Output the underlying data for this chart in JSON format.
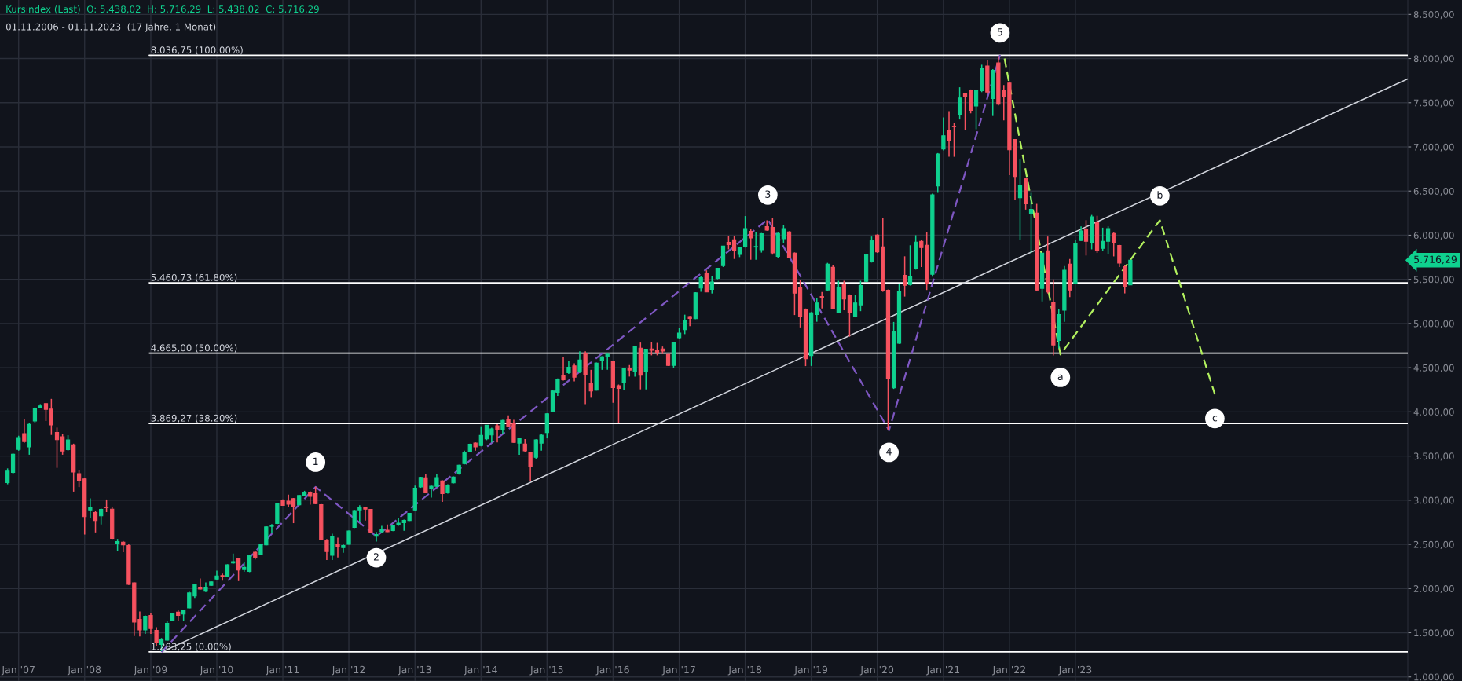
{
  "chart_data": {
    "type": "candlestick",
    "title": "Kursindex (Last)  O: 5.438,02  H: 5.716,29  L: 5.438,02  C: 5.716,29",
    "subtitle": "01.11.2006 - 01.11.2023  (17 Jahre, 1 Monat)",
    "x": [
      "2006-11",
      "2006-12",
      "2007-01",
      "2007-02",
      "2007-03",
      "2007-04",
      "2007-05",
      "2007-06",
      "2007-07",
      "2007-08",
      "2007-09",
      "2007-10",
      "2007-11",
      "2007-12",
      "2008-01",
      "2008-02",
      "2008-03",
      "2008-04",
      "2008-05",
      "2008-06",
      "2008-07",
      "2008-08",
      "2008-09",
      "2008-10",
      "2008-11",
      "2008-12",
      "2009-01",
      "2009-02",
      "2009-03",
      "2009-04",
      "2009-05",
      "2009-06",
      "2009-07",
      "2009-08",
      "2009-09",
      "2009-10",
      "2009-11",
      "2009-12",
      "2010-01",
      "2010-02",
      "2010-03",
      "2010-04",
      "2010-05",
      "2010-06",
      "2010-07",
      "2010-08",
      "2010-09",
      "2010-10",
      "2010-11",
      "2010-12",
      "2011-01",
      "2011-02",
      "2011-03",
      "2011-04",
      "2011-05",
      "2011-06",
      "2011-07",
      "2011-08",
      "2011-09",
      "2011-10",
      "2011-11",
      "2011-12",
      "2012-01",
      "2012-02",
      "2012-03",
      "2012-04",
      "2012-05",
      "2012-06",
      "2012-07",
      "2012-08",
      "2012-09",
      "2012-10",
      "2012-11",
      "2012-12",
      "2013-01",
      "2013-02",
      "2013-03",
      "2013-04",
      "2013-05",
      "2013-06",
      "2013-07",
      "2013-08",
      "2013-09",
      "2013-10",
      "2013-11",
      "2013-12",
      "2014-01",
      "2014-02",
      "2014-03",
      "2014-04",
      "2014-05",
      "2014-06",
      "2014-07",
      "2014-08",
      "2014-09",
      "2014-10",
      "2014-11",
      "2014-12",
      "2015-01",
      "2015-02",
      "2015-03",
      "2015-04",
      "2015-05",
      "2015-06",
      "2015-07",
      "2015-08",
      "2015-09",
      "2015-10",
      "2015-11",
      "2015-12",
      "2016-01",
      "2016-02",
      "2016-03",
      "2016-04",
      "2016-05",
      "2016-06",
      "2016-07",
      "2016-08",
      "2016-09",
      "2016-10",
      "2016-11",
      "2016-12",
      "2017-01",
      "2017-02",
      "2017-03",
      "2017-04",
      "2017-05",
      "2017-06",
      "2017-07",
      "2017-08",
      "2017-09",
      "2017-10",
      "2017-11",
      "2017-12",
      "2018-01",
      "2018-02",
      "2018-03",
      "2018-04",
      "2018-05",
      "2018-06",
      "2018-07",
      "2018-08",
      "2018-09",
      "2018-10",
      "2018-11",
      "2018-12",
      "2019-01",
      "2019-02",
      "2019-03",
      "2019-04",
      "2019-05",
      "2019-06",
      "2019-07",
      "2019-08",
      "2019-09",
      "2019-10",
      "2019-11",
      "2019-12",
      "2020-01",
      "2020-02",
      "2020-03",
      "2020-04",
      "2020-05",
      "2020-06",
      "2020-07",
      "2020-08",
      "2020-09",
      "2020-10",
      "2020-11",
      "2020-12",
      "2021-01",
      "2021-02",
      "2021-03",
      "2021-04",
      "2021-05",
      "2021-06",
      "2021-07",
      "2021-08",
      "2021-09",
      "2021-10",
      "2021-11",
      "2021-12",
      "2022-01",
      "2022-02",
      "2022-03",
      "2022-04",
      "2022-05",
      "2022-06",
      "2022-07",
      "2022-08",
      "2022-09",
      "2022-10",
      "2022-11",
      "2022-12",
      "2023-01",
      "2023-02",
      "2023-03",
      "2023-04",
      "2023-05",
      "2023-06",
      "2023-07",
      "2023-08",
      "2023-09",
      "2023-10",
      "2023-11"
    ],
    "ohlc": [
      [
        3200,
        3360,
        3180,
        3330
      ],
      [
        3315,
        3530,
        3300,
        3520
      ],
      [
        3575,
        3730,
        3560,
        3710
      ],
      [
        3753,
        3915,
        3650,
        3664
      ],
      [
        3604,
        3870,
        3515,
        3858
      ],
      [
        3897,
        4050,
        3880,
        4043
      ],
      [
        4052,
        4088,
        4040,
        4067
      ],
      [
        4093,
        4100,
        3897,
        4028
      ],
      [
        4031,
        4147,
        3739,
        3852
      ],
      [
        3768,
        3822,
        3366,
        3685
      ],
      [
        3718,
        3753,
        3515,
        3557
      ],
      [
        3572,
        3736,
        3560,
        3682
      ],
      [
        3628,
        3640,
        3097,
        3318
      ],
      [
        3300,
        3342,
        3148,
        3217
      ],
      [
        3241,
        3250,
        2611,
        2814
      ],
      [
        2889,
        3020,
        2799,
        2913
      ],
      [
        2859,
        2874,
        2635,
        2769
      ],
      [
        2823,
        2905,
        2725,
        2895
      ],
      [
        2922,
        3008,
        2865,
        2916
      ],
      [
        2898,
        2922,
        2560,
        2567
      ],
      [
        2513,
        2561,
        2426,
        2531
      ],
      [
        2525,
        2537,
        2411,
        2495
      ],
      [
        2486,
        2507,
        2040,
        2048
      ],
      [
        2063,
        2070,
        1463,
        1621
      ],
      [
        1651,
        1741,
        1457,
        1532
      ],
      [
        1532,
        1695,
        1487,
        1687
      ],
      [
        1696,
        1726,
        1487,
        1547
      ],
      [
        1526,
        1562,
        1344,
        1392
      ],
      [
        1368,
        1440,
        1290,
        1428
      ],
      [
        1416,
        1630,
        1410,
        1606
      ],
      [
        1637,
        1725,
        1630,
        1717
      ],
      [
        1732,
        1761,
        1637,
        1696
      ],
      [
        1711,
        1760,
        1630,
        1756
      ],
      [
        1780,
        1964,
        1775,
        1950
      ],
      [
        1917,
        2050,
        1893,
        2045
      ],
      [
        2015,
        2114,
        1990,
        1994
      ],
      [
        1970,
        2070,
        1960,
        2015
      ],
      [
        2036,
        2080,
        2030,
        2075
      ],
      [
        2107,
        2203,
        2100,
        2143
      ],
      [
        2146,
        2170,
        2090,
        2131
      ],
      [
        2137,
        2275,
        2130,
        2268
      ],
      [
        2289,
        2396,
        2280,
        2304
      ],
      [
        2337,
        2345,
        2084,
        2209
      ],
      [
        2215,
        2300,
        2190,
        2239
      ],
      [
        2194,
        2380,
        2185,
        2373
      ],
      [
        2412,
        2420,
        2330,
        2352
      ],
      [
        2388,
        2505,
        2380,
        2501
      ],
      [
        2495,
        2705,
        2490,
        2698
      ],
      [
        2704,
        2730,
        2630,
        2710
      ],
      [
        2737,
        2960,
        2730,
        2957
      ],
      [
        3002,
        3010,
        2935,
        2942
      ],
      [
        2990,
        3062,
        2919,
        2954
      ],
      [
        3017,
        3025,
        2740,
        2933
      ],
      [
        2948,
        3060,
        2940,
        3053
      ],
      [
        3056,
        3106,
        3050,
        3083
      ],
      [
        3092,
        3100,
        2950,
        3044
      ],
      [
        3074,
        3151,
        2955,
        2960
      ],
      [
        2948,
        2955,
        2545,
        2552
      ],
      [
        2546,
        2560,
        2322,
        2418
      ],
      [
        2376,
        2620,
        2322,
        2591
      ],
      [
        2501,
        2576,
        2352,
        2477
      ],
      [
        2462,
        2510,
        2405,
        2486
      ],
      [
        2501,
        2655,
        2495,
        2650
      ],
      [
        2692,
        2890,
        2685,
        2883
      ],
      [
        2889,
        2942,
        2750,
        2919
      ],
      [
        2919,
        2925,
        2770,
        2898
      ],
      [
        2895,
        2900,
        2630,
        2635
      ],
      [
        2591,
        2640,
        2531,
        2611
      ],
      [
        2644,
        2710,
        2630,
        2665
      ],
      [
        2659,
        2725,
        2640,
        2644
      ],
      [
        2656,
        2720,
        2650,
        2716
      ],
      [
        2719,
        2800,
        2710,
        2740
      ],
      [
        2746,
        2780,
        2653,
        2770
      ],
      [
        2770,
        2855,
        2765,
        2850
      ],
      [
        2889,
        3165,
        2880,
        3136
      ],
      [
        3151,
        3265,
        3140,
        3259
      ],
      [
        3253,
        3291,
        3080,
        3083
      ],
      [
        3127,
        3165,
        3030,
        3157
      ],
      [
        3157,
        3291,
        3150,
        3256
      ],
      [
        3217,
        3225,
        2980,
        3074
      ],
      [
        3083,
        3180,
        3075,
        3172
      ],
      [
        3196,
        3270,
        3190,
        3262
      ],
      [
        3300,
        3400,
        3290,
        3396
      ],
      [
        3414,
        3560,
        3405,
        3539
      ],
      [
        3551,
        3640,
        3545,
        3634
      ],
      [
        3646,
        3655,
        3560,
        3604
      ],
      [
        3619,
        3837,
        3610,
        3733
      ],
      [
        3694,
        3850,
        3680,
        3849
      ],
      [
        3739,
        3820,
        3655,
        3807
      ],
      [
        3843,
        3860,
        3655,
        3795
      ],
      [
        3799,
        3910,
        3745,
        3903
      ],
      [
        3915,
        3960,
        3835,
        3840
      ],
      [
        3864,
        3910,
        3650,
        3655
      ],
      [
        3646,
        3700,
        3515,
        3696
      ],
      [
        3637,
        3691,
        3550,
        3560
      ],
      [
        3542,
        3550,
        3213,
        3381
      ],
      [
        3485,
        3690,
        3470,
        3682
      ],
      [
        3646,
        3745,
        3560,
        3736
      ],
      [
        3766,
        3985,
        3700,
        3978
      ],
      [
        4005,
        4245,
        3995,
        4237
      ],
      [
        4222,
        4380,
        4180,
        4372
      ],
      [
        4408,
        4616,
        4355,
        4363
      ],
      [
        4443,
        4581,
        4430,
        4506
      ],
      [
        4521,
        4551,
        4345,
        4393
      ],
      [
        4461,
        4685,
        4440,
        4587
      ],
      [
        4658,
        4685,
        4088,
        4425
      ],
      [
        4327,
        4476,
        4160,
        4237
      ],
      [
        4246,
        4560,
        4240,
        4551
      ],
      [
        4581,
        4630,
        4476,
        4622
      ],
      [
        4628,
        4660,
        4476,
        4652
      ],
      [
        4569,
        4575,
        4103,
        4276
      ],
      [
        4297,
        4310,
        3873,
        4267
      ],
      [
        4336,
        4500,
        4250,
        4494
      ],
      [
        4494,
        4530,
        4400,
        4473
      ],
      [
        4455,
        4750,
        4400,
        4745
      ],
      [
        4721,
        4785,
        4255,
        4416
      ],
      [
        4461,
        4715,
        4255,
        4709
      ],
      [
        4712,
        4790,
        4640,
        4697
      ],
      [
        4694,
        4781,
        4640,
        4670
      ],
      [
        4712,
        4740,
        4655,
        4688
      ],
      [
        4649,
        4655,
        4520,
        4527
      ],
      [
        4527,
        4790,
        4500,
        4781
      ],
      [
        4840,
        4955,
        4830,
        4891
      ],
      [
        4930,
        5100,
        4880,
        5034
      ],
      [
        5079,
        5085,
        4970,
        5058
      ],
      [
        5055,
        5355,
        5050,
        5348
      ],
      [
        5402,
        5536,
        5360,
        5518
      ],
      [
        5572,
        5602,
        5355,
        5357
      ],
      [
        5387,
        5536,
        5340,
        5470
      ],
      [
        5512,
        5630,
        5500,
        5625
      ],
      [
        5655,
        5880,
        5640,
        5876
      ],
      [
        5918,
        5993,
        5840,
        5894
      ],
      [
        5949,
        5990,
        5731,
        5830
      ],
      [
        5782,
        5865,
        5752,
        5856
      ],
      [
        5871,
        6217,
        5860,
        6074
      ],
      [
        6044,
        6074,
        5722,
        5970
      ],
      [
        5866,
        6038,
        5722,
        5872
      ],
      [
        5835,
        6025,
        5803,
        6017
      ],
      [
        6098,
        6169,
        6050,
        6059
      ],
      [
        6089,
        6199,
        5780,
        5800
      ],
      [
        5761,
        6030,
        5740,
        6020
      ],
      [
        5961,
        6119,
        5910,
        6074
      ],
      [
        6038,
        6045,
        5740,
        5746
      ],
      [
        5797,
        5805,
        5096,
        5344
      ],
      [
        5412,
        5493,
        4956,
        5084
      ],
      [
        5162,
        5170,
        4518,
        4602
      ],
      [
        4638,
        5130,
        4520,
        5120
      ],
      [
        5102,
        5284,
        5020,
        5233
      ],
      [
        5305,
        5358,
        5170,
        5290
      ],
      [
        5380,
        5687,
        5370,
        5672
      ],
      [
        5636,
        5663,
        5160,
        5165
      ],
      [
        5129,
        5484,
        5120,
        5403
      ],
      [
        5448,
        5484,
        5150,
        5278
      ],
      [
        5323,
        5330,
        4852,
        5129
      ],
      [
        5076,
        5320,
        5070,
        5233
      ],
      [
        5210,
        5484,
        5140,
        5430
      ],
      [
        5478,
        5785,
        5470,
        5779
      ],
      [
        5701,
        5985,
        5690,
        5940
      ],
      [
        6002,
        6010,
        5800,
        5812
      ],
      [
        5868,
        6199,
        5360,
        5371
      ],
      [
        5377,
        5385,
        3794,
        4381
      ],
      [
        4272,
        5018,
        4260,
        4912
      ],
      [
        4778,
        5448,
        4770,
        5359
      ],
      [
        5546,
        5761,
        5305,
        5433
      ],
      [
        5442,
        5886,
        5430,
        5529
      ],
      [
        5627,
        6000,
        5610,
        5922
      ],
      [
        5931,
        5950,
        5640,
        5859
      ],
      [
        5886,
        6035,
        5380,
        5448
      ],
      [
        5558,
        6470,
        5530,
        6457
      ],
      [
        6559,
        6930,
        6480,
        6920
      ],
      [
        6977,
        7334,
        6960,
        7127
      ],
      [
        7181,
        7404,
        6888,
        7069
      ],
      [
        7235,
        7270,
        6888,
        7229
      ],
      [
        7360,
        7675,
        7310,
        7554
      ],
      [
        7599,
        7610,
        7191,
        7567
      ],
      [
        7637,
        7650,
        7380,
        7414
      ],
      [
        7462,
        7650,
        7200,
        7637
      ],
      [
        7637,
        7930,
        7620,
        7886
      ],
      [
        7915,
        7988,
        7600,
        7621
      ],
      [
        7548,
        7880,
        7350,
        7867
      ],
      [
        7950,
        8026,
        7470,
        7484
      ],
      [
        7644,
        7700,
        7300,
        7567
      ],
      [
        7723,
        7730,
        6680,
        6967
      ],
      [
        7085,
        7090,
        6400,
        6664
      ],
      [
        6425,
        6865,
        5947,
        6566
      ],
      [
        6642,
        6650,
        6290,
        6355
      ],
      [
        6247,
        6480,
        5800,
        6292
      ],
      [
        6250,
        6355,
        5370,
        5379
      ],
      [
        5398,
        5800,
        5250,
        5797
      ],
      [
        5823,
        5985,
        5340,
        5357
      ],
      [
        5236,
        5500,
        4640,
        4758
      ],
      [
        4809,
        5165,
        4719,
        5102
      ],
      [
        5150,
        5650,
        5020,
        5603
      ],
      [
        5673,
        5730,
        5300,
        5379
      ],
      [
        5453,
        5950,
        5447,
        5905
      ],
      [
        5941,
        6100,
        5935,
        6049
      ],
      [
        6065,
        6170,
        5770,
        5931
      ],
      [
        5921,
        6230,
        5840,
        6208
      ],
      [
        6145,
        6220,
        5800,
        5826
      ],
      [
        5851,
        6085,
        5820,
        5931
      ],
      [
        5931,
        6100,
        5785,
        6075
      ],
      [
        6020,
        6030,
        5760,
        5915
      ],
      [
        5883,
        5890,
        5640,
        5685
      ],
      [
        5644,
        5660,
        5341,
        5421
      ],
      [
        5438.02,
        5716.29,
        5438.02,
        5716.29
      ]
    ],
    "colors": [
      "#0fd18f",
      "#0fd18f",
      "#0fd18f",
      "#f7525f",
      "#0fd18f",
      "#0fd18f",
      "#0fd18f",
      "#f7525f",
      "#f7525f",
      "#f7525f",
      "#f7525f",
      "#0fd18f",
      "#f7525f",
      "#f7525f",
      "#f7525f",
      "#0fd18f",
      "#f7525f",
      "#0fd18f",
      "#f7525f",
      "#f7525f",
      "#0fd18f",
      "#f7525f",
      "#f7525f",
      "#f7525f",
      "#f7525f",
      "#0fd18f",
      "#f7525f",
      "#f7525f",
      "#0fd18f",
      "#0fd18f",
      "#0fd18f",
      "#f7525f",
      "#0fd18f",
      "#0fd18f",
      "#0fd18f",
      "#f7525f",
      "#0fd18f",
      "#0fd18f",
      "#0fd18f",
      "#f7525f",
      "#0fd18f",
      "#0fd18f",
      "#f7525f",
      "#0fd18f",
      "#0fd18f",
      "#f7525f",
      "#0fd18f",
      "#0fd18f",
      "#0fd18f",
      "#0fd18f",
      "#f7525f",
      "#f7525f",
      "#f7525f",
      "#0fd18f",
      "#0fd18f",
      "#f7525f",
      "#f7525f",
      "#f7525f",
      "#f7525f",
      "#0fd18f",
      "#f7525f",
      "#0fd18f",
      "#0fd18f",
      "#0fd18f",
      "#0fd18f",
      "#f7525f",
      "#f7525f",
      "#0fd18f",
      "#0fd18f",
      "#f7525f",
      "#0fd18f",
      "#0fd18f",
      "#0fd18f",
      "#0fd18f",
      "#0fd18f",
      "#0fd18f",
      "#f7525f",
      "#0fd18f",
      "#0fd18f",
      "#f7525f",
      "#0fd18f",
      "#0fd18f",
      "#0fd18f",
      "#0fd18f",
      "#0fd18f",
      "#f7525f",
      "#0fd18f",
      "#0fd18f",
      "#0fd18f",
      "#f7525f",
      "#0fd18f",
      "#f7525f",
      "#f7525f",
      "#0fd18f",
      "#f7525f",
      "#f7525f",
      "#0fd18f",
      "#0fd18f",
      "#0fd18f",
      "#0fd18f",
      "#0fd18f",
      "#f7525f",
      "#0fd18f",
      "#f7525f",
      "#0fd18f",
      "#f7525f",
      "#f7525f",
      "#0fd18f",
      "#0fd18f",
      "#0fd18f",
      "#f7525f",
      "#f7525f",
      "#0fd18f",
      "#f7525f",
      "#0fd18f",
      "#f7525f",
      "#0fd18f",
      "#f7525f",
      "#f7525f",
      "#f7525f",
      "#f7525f",
      "#0fd18f",
      "#0fd18f",
      "#0fd18f",
      "#f7525f",
      "#0fd18f",
      "#0fd18f",
      "#f7525f",
      "#0fd18f",
      "#0fd18f",
      "#0fd18f",
      "#f7525f",
      "#f7525f",
      "#0fd18f",
      "#0fd18f",
      "#f7525f",
      "#0fd18f",
      "#0fd18f",
      "#f7525f",
      "#f7525f",
      "#0fd18f",
      "#0fd18f",
      "#f7525f",
      "#f7525f",
      "#f7525f",
      "#f7525f",
      "#0fd18f",
      "#0fd18f",
      "#f7525f",
      "#0fd18f",
      "#f7525f",
      "#0fd18f",
      "#f7525f",
      "#f7525f",
      "#0fd18f",
      "#0fd18f",
      "#0fd18f",
      "#0fd18f",
      "#f7525f",
      "#f7525f",
      "#f7525f",
      "#0fd18f",
      "#0fd18f",
      "#f7525f",
      "#0fd18f",
      "#0fd18f",
      "#f7525f",
      "#f7525f",
      "#0fd18f",
      "#0fd18f",
      "#0fd18f",
      "#f7525f",
      "#f7525f",
      "#0fd18f",
      "#f7525f",
      "#f7525f",
      "#0fd18f",
      "#0fd18f",
      "#f7525f",
      "#0fd18f",
      "#f7525f",
      "#f7525f",
      "#f7525f",
      "#f7525f",
      "#0fd18f",
      "#f7525f",
      "#0fd18f",
      "#f7525f",
      "#0fd18f",
      "#f7525f",
      "#f7525f",
      "#0fd18f",
      "#0fd18f",
      "#f7525f",
      "#0fd18f",
      "#0fd18f",
      "#f7525f",
      "#0fd18f",
      "#f7525f",
      "#0fd18f",
      "#0fd18f",
      "#f7525f",
      "#f7525f",
      "#f7525f",
      "#0fd18f"
    ],
    "series": [
      {
        "type": "line",
        "color": "#d1d4dc",
        "line_style": "solid",
        "x": [
          "2009-03-01",
          "2028-01-13"
        ],
        "values": [
          1280,
          7770
        ]
      },
      {
        "type": "line",
        "color": "#7e57c2",
        "line_style": "dashed",
        "x": [
          "2009-03-01",
          "2011-07-01",
          "2012-06-01",
          "2018-05-06",
          "2020-03-06",
          "2021-11-10"
        ],
        "values": [
          1280,
          3150,
          2590,
          6180,
          3790,
          8040
        ]
      },
      {
        "type": "line",
        "color": "#b2f05e",
        "line_style": "dashed",
        "x": [
          "2021-12-05",
          "2022-10-10",
          "2024-04-12",
          "2025-02-10"
        ],
        "values": [
          8000,
          4650,
          6170,
          4200
        ]
      }
    ],
    "ref_lines": [
      {
        "axis": "y",
        "value": 8036.75,
        "label": "8.036,75 (100.00%)",
        "color": "#ffffff"
      },
      {
        "axis": "y",
        "value": 5460.73,
        "label": "5.460,73 (61.80%)",
        "color": "#ffffff"
      },
      {
        "axis": "y",
        "value": 4665.0,
        "label": "4.665,00 (50.00%)",
        "color": "#ffffff"
      },
      {
        "axis": "y",
        "value": 3869.27,
        "label": "3.869,27 (38.20%)",
        "color": "#ffffff"
      },
      {
        "axis": "y",
        "value": 1283.25,
        "label": "1.283,25 (0.00%)",
        "color": "#ffffff"
      }
    ],
    "annotations": [
      {
        "text": "1",
        "x": "2011-07-01",
        "y": 3430
      },
      {
        "text": "2",
        "x": "2012-06-01",
        "y": 2349
      },
      {
        "text": "3",
        "x": "2018-05-06",
        "y": 6455
      },
      {
        "text": "4",
        "x": "2020-03-06",
        "y": 3541
      },
      {
        "text": "5",
        "x": "2021-11-10",
        "y": 8291
      },
      {
        "text": "a",
        "x": "2022-10-10",
        "y": 4391
      },
      {
        "text": "b",
        "x": "2024-04-12",
        "y": 6446
      },
      {
        "text": "c",
        "x": "2025-02-10",
        "y": 3925
      },
      "5.716,29"
    ],
    "xlim": [
      "2006-09-20",
      "2028-01-13"
    ],
    "xticks": [
      {
        "value": "2007-01",
        "label": "Jan '07"
      },
      {
        "value": "2008-01",
        "label": "Jan '08"
      },
      {
        "value": "2009-01",
        "label": "Jan '09"
      },
      {
        "value": "2010-01",
        "label": "Jan '10"
      },
      {
        "value": "2011-01",
        "label": "Jan '11"
      },
      {
        "value": "2012-01",
        "label": "Jan '12"
      },
      {
        "value": "2013-01",
        "label": "Jan '13"
      },
      {
        "value": "2014-01",
        "label": "Jan '14"
      },
      {
        "value": "2015-01",
        "label": "Jan '15"
      },
      {
        "value": "2016-01",
        "label": "Jan '16"
      },
      {
        "value": "2017-01",
        "label": "Jan '17"
      },
      {
        "value": "2018-01",
        "label": "Jan '18"
      },
      {
        "value": "2019-01",
        "label": "Jan '19"
      },
      {
        "value": "2020-01",
        "label": "Jan '20"
      },
      {
        "value": "2021-01",
        "label": "Jan '21"
      },
      {
        "value": "2022-01",
        "label": "Jan '22"
      },
      {
        "value": "2023-01",
        "label": "Jan '23"
      }
    ],
    "ylim": [
      953,
      8663
    ],
    "yticks": [
      {
        "value": 1000,
        "label": "1.000,00"
      },
      {
        "value": 1500,
        "label": "1.500,00"
      },
      {
        "value": 2000,
        "label": "2.000,00"
      },
      {
        "value": 2500,
        "label": "2.500,00"
      },
      {
        "value": 3000,
        "label": "3.000,00"
      },
      {
        "value": 3500,
        "label": "3.500,00"
      },
      {
        "value": 4000,
        "label": "4.000,00"
      },
      {
        "value": 4500,
        "label": "4.500,00"
      },
      {
        "value": 5000,
        "label": "5.000,00"
      },
      {
        "value": 5500,
        "label": "5.500,00"
      },
      {
        "value": 6000,
        "label": "6.000,00"
      },
      {
        "value": 6500,
        "label": "6.500,00"
      },
      {
        "value": 7000,
        "label": "7.000,00"
      },
      {
        "value": 7500,
        "label": "7.500,00"
      },
      {
        "value": 8000,
        "label": "8.000,00"
      },
      {
        "value": 8500,
        "label": "8.500,00"
      }
    ],
    "grid": true,
    "legend": false,
    "marker": "none"
  }
}
